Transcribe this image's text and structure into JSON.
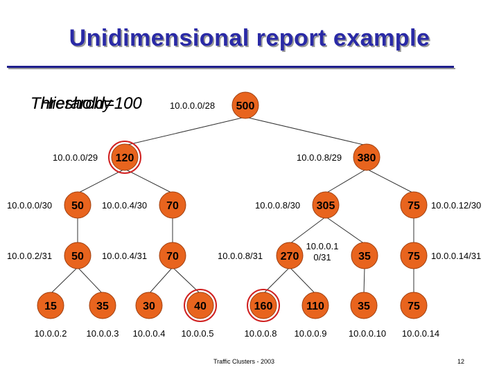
{
  "slide": {
    "title": "Unidimensional report example",
    "threshold_lines": [
      "Threshold=100",
      "Hierarchy",
      "Threshold=100"
    ],
    "footer_text": "Traffic Clusters - 2003",
    "page_number": "12"
  },
  "tree": {
    "nodes": [
      {
        "id": "n500",
        "value": "500",
        "label": "10.0.0.0/28",
        "highlight": false
      },
      {
        "id": "n120",
        "value": "120",
        "label": "10.0.0.0/29",
        "highlight": true
      },
      {
        "id": "n380",
        "value": "380",
        "label": "10.0.0.8/29",
        "highlight": false
      },
      {
        "id": "n50a",
        "value": "50",
        "label": "10.0.0.0/30",
        "highlight": false
      },
      {
        "id": "n70a",
        "value": "70",
        "label": "10.0.0.4/30",
        "highlight": false
      },
      {
        "id": "n305",
        "value": "305",
        "label": "10.0.0.8/30",
        "highlight": false
      },
      {
        "id": "n75a",
        "value": "75",
        "label": "10.0.0.12/30",
        "highlight": false
      },
      {
        "id": "n50b",
        "value": "50",
        "label": "10.0.0.2/31",
        "highlight": false
      },
      {
        "id": "n70b",
        "value": "70",
        "label": "10.0.0.4/31",
        "highlight": false
      },
      {
        "id": "n270",
        "value": "270",
        "label": "10.0.0.8/31",
        "highlight": false
      },
      {
        "id": "n35a",
        "value": "35",
        "label": "10.0.0.1\n0/31",
        "highlight": false
      },
      {
        "id": "n75b",
        "value": "75",
        "label": "10.0.0.14/31",
        "highlight": false
      },
      {
        "id": "n15",
        "value": "15",
        "label": "10.0.0.2",
        "highlight": false
      },
      {
        "id": "n35b",
        "value": "35",
        "label": "10.0.0.3",
        "highlight": false
      },
      {
        "id": "n30",
        "value": "30",
        "label": "10.0.0.4",
        "highlight": false
      },
      {
        "id": "n40",
        "value": "40",
        "label": "10.0.0.5",
        "highlight": true
      },
      {
        "id": "n160",
        "value": "160",
        "label": "10.0.0.8",
        "highlight": true
      },
      {
        "id": "n110",
        "value": "110",
        "label": "10.0.0.9",
        "highlight": false
      },
      {
        "id": "n35c",
        "value": "35",
        "label": "10.0.0.10",
        "highlight": false
      },
      {
        "id": "n75c",
        "value": "75",
        "label": "10.0.0.14",
        "highlight": false
      }
    ],
    "edges": [
      [
        "n500",
        "n120"
      ],
      [
        "n500",
        "n380"
      ],
      [
        "n120",
        "n50a"
      ],
      [
        "n120",
        "n70a"
      ],
      [
        "n380",
        "n305"
      ],
      [
        "n380",
        "n75a"
      ],
      [
        "n50a",
        "n50b"
      ],
      [
        "n70a",
        "n70b"
      ],
      [
        "n305",
        "n270"
      ],
      [
        "n305",
        "n35a"
      ],
      [
        "n75a",
        "n75b"
      ],
      [
        "n50b",
        "n15"
      ],
      [
        "n50b",
        "n35b"
      ],
      [
        "n70b",
        "n30"
      ],
      [
        "n70b",
        "n40"
      ],
      [
        "n270",
        "n160"
      ],
      [
        "n270",
        "n110"
      ],
      [
        "n35a",
        "n35c"
      ],
      [
        "n75b",
        "n75c"
      ]
    ]
  },
  "colors": {
    "title": "#2a2aa6",
    "node_fill": "#e8641e",
    "node_stroke": "#a04010",
    "highlight_ring": "#d02020",
    "edge": "#333333"
  }
}
